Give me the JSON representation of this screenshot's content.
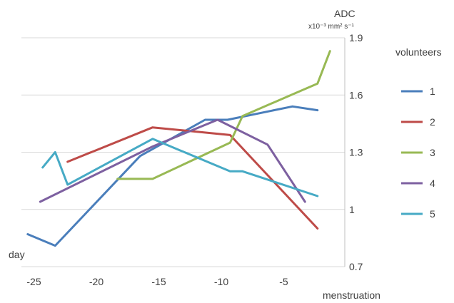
{
  "chart_data": {
    "type": "line",
    "ylabel": "ADC",
    "yunit": "x10⁻³ mm² s⁻¹",
    "xlabel": "menstruation",
    "xlabel_left": "day",
    "xlim": [
      -26,
      0
    ],
    "ylim": [
      0.7,
      1.9
    ],
    "xticks": [
      -25,
      -20,
      -15,
      -10,
      -5
    ],
    "yticks": [
      0.7,
      1,
      1.3,
      1.6,
      1.9
    ],
    "ytick_labels": [
      "0.7",
      "1",
      "1.3",
      "1.6",
      "1.9"
    ],
    "grid": "horizontal",
    "legend": {
      "title": "volunteers",
      "position": "right"
    },
    "series": [
      {
        "name": "1",
        "color": "#4A7EBB",
        "points": [
          [
            -25.5,
            0.87
          ],
          [
            -23.3,
            0.81
          ],
          [
            -16.5,
            1.28
          ],
          [
            -11.3,
            1.47
          ],
          [
            -9.5,
            1.47
          ],
          [
            -4.3,
            1.54
          ],
          [
            -2.3,
            1.52
          ]
        ]
      },
      {
        "name": "2",
        "color": "#BE4B48",
        "points": [
          [
            -22.3,
            1.25
          ],
          [
            -15.5,
            1.43
          ],
          [
            -9.3,
            1.39
          ],
          [
            -2.3,
            0.9
          ]
        ]
      },
      {
        "name": "3",
        "color": "#98B954",
        "points": [
          [
            -18.3,
            1.16
          ],
          [
            -15.5,
            1.16
          ],
          [
            -9.3,
            1.35
          ],
          [
            -8.3,
            1.49
          ],
          [
            -2.3,
            1.66
          ],
          [
            -1.3,
            1.83
          ]
        ]
      },
      {
        "name": "4",
        "color": "#7D60A0",
        "points": [
          [
            -24.5,
            1.04
          ],
          [
            -15.5,
            1.33
          ],
          [
            -10.3,
            1.47
          ],
          [
            -6.3,
            1.34
          ],
          [
            -3.3,
            1.04
          ]
        ]
      },
      {
        "name": "5",
        "color": "#46AAC5",
        "points": [
          [
            -24.3,
            1.22
          ],
          [
            -23.3,
            1.3
          ],
          [
            -22.3,
            1.13
          ],
          [
            -15.5,
            1.37
          ],
          [
            -9.3,
            1.2
          ],
          [
            -8.3,
            1.2
          ],
          [
            -2.3,
            1.07
          ]
        ]
      }
    ]
  }
}
